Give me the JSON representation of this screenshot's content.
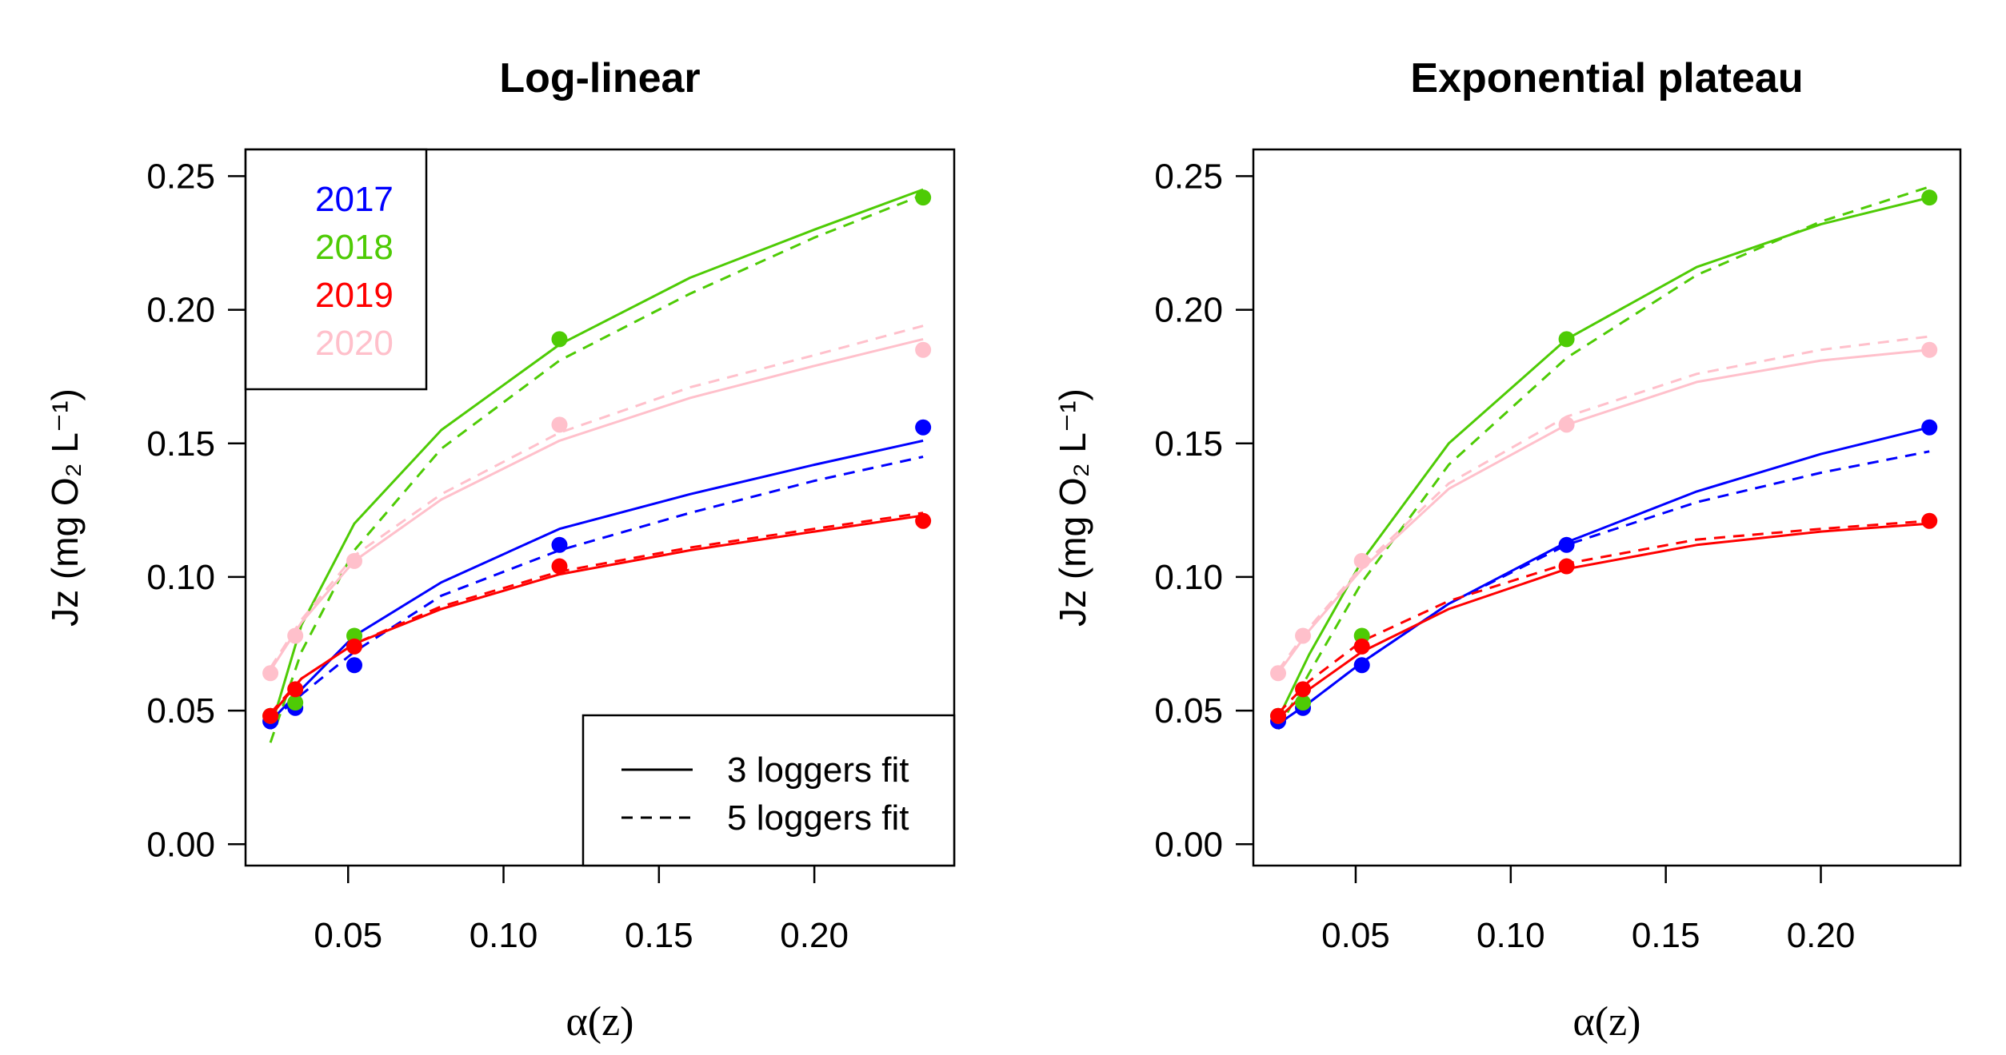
{
  "chart_data": [
    {
      "type": "line",
      "title": "Log-linear",
      "xlabel": "α(z)",
      "ylabel": "Jz (mg O₂ L⁻¹)",
      "xlim": [
        0.017,
        0.245
      ],
      "ylim": [
        -0.008,
        0.26
      ],
      "xticks": [
        "0.05",
        "0.10",
        "0.15",
        "0.20"
      ],
      "yticks": [
        "0.00",
        "0.05",
        "0.10",
        "0.15",
        "0.20",
        "0.25"
      ],
      "color_legend": {
        "placement": "top-left",
        "entries": [
          "2017",
          "2018",
          "2019",
          "2020"
        ]
      },
      "line_legend": {
        "placement": "bottom-right",
        "entries": [
          "3 loggers fit",
          "5 loggers fit"
        ]
      },
      "series": [
        {
          "name": "2017",
          "color": "#0000FF",
          "points": {
            "x": [
              0.025,
              0.033,
              0.052,
              0.118,
              0.235
            ],
            "y": [
              0.046,
              0.051,
              0.067,
              0.112,
              0.156
            ]
          },
          "fit_3": {
            "x": [
              0.025,
              0.035,
              0.052,
              0.08,
              0.118,
              0.16,
              0.2,
              0.235
            ],
            "y": [
              0.046,
              0.058,
              0.078,
              0.098,
              0.118,
              0.131,
              0.142,
              0.151
            ]
          },
          "fit_5": {
            "x": [
              0.025,
              0.035,
              0.052,
              0.08,
              0.118,
              0.16,
              0.2,
              0.235
            ],
            "y": [
              0.046,
              0.056,
              0.072,
              0.093,
              0.11,
              0.124,
              0.136,
              0.145
            ]
          }
        },
        {
          "name": "2018",
          "color": "#4ECB05",
          "points": {
            "x": [
              0.025,
              0.033,
              0.052,
              0.118,
              0.235
            ],
            "y": [
              0.048,
              0.053,
              0.078,
              0.189,
              0.242
            ]
          },
          "fit_3": {
            "x": [
              0.025,
              0.035,
              0.052,
              0.08,
              0.118,
              0.16,
              0.2,
              0.235
            ],
            "y": [
              0.043,
              0.082,
              0.12,
              0.155,
              0.187,
              0.212,
              0.23,
              0.245
            ]
          },
          "fit_5": {
            "x": [
              0.025,
              0.035,
              0.052,
              0.08,
              0.118,
              0.16,
              0.2,
              0.235
            ],
            "y": [
              0.038,
              0.072,
              0.11,
              0.148,
              0.181,
              0.206,
              0.227,
              0.243
            ]
          }
        },
        {
          "name": "2019",
          "color": "#FF0000",
          "points": {
            "x": [
              0.025,
              0.033,
              0.052,
              0.118,
              0.235
            ],
            "y": [
              0.048,
              0.058,
              0.074,
              0.104,
              0.121
            ]
          },
          "fit_3": {
            "x": [
              0.025,
              0.035,
              0.052,
              0.08,
              0.118,
              0.16,
              0.2,
              0.235
            ],
            "y": [
              0.048,
              0.062,
              0.075,
              0.088,
              0.101,
              0.11,
              0.117,
              0.123
            ]
          },
          "fit_5": {
            "x": [
              0.025,
              0.035,
              0.052,
              0.08,
              0.118,
              0.16,
              0.2,
              0.235
            ],
            "y": [
              0.049,
              0.062,
              0.075,
              0.089,
              0.102,
              0.111,
              0.118,
              0.124
            ]
          }
        },
        {
          "name": "2020",
          "color": "#FFC0CB",
          "points": {
            "x": [
              0.025,
              0.033,
              0.052,
              0.118,
              0.235
            ],
            "y": [
              0.064,
              0.078,
              0.106,
              0.157,
              0.185
            ]
          },
          "fit_3": {
            "x": [
              0.025,
              0.035,
              0.052,
              0.08,
              0.118,
              0.16,
              0.2,
              0.235
            ],
            "y": [
              0.065,
              0.083,
              0.106,
              0.129,
              0.151,
              0.167,
              0.179,
              0.189
            ]
          },
          "fit_5": {
            "x": [
              0.025,
              0.035,
              0.052,
              0.08,
              0.118,
              0.16,
              0.2,
              0.235
            ],
            "y": [
              0.066,
              0.084,
              0.108,
              0.131,
              0.154,
              0.171,
              0.183,
              0.194
            ]
          }
        }
      ]
    },
    {
      "type": "line",
      "title": "Exponential plateau",
      "xlabel": "α(z)",
      "ylabel": "Jz (mg O₂ L⁻¹)",
      "xlim": [
        0.017,
        0.245
      ],
      "ylim": [
        -0.008,
        0.26
      ],
      "xticks": [
        "0.05",
        "0.10",
        "0.15",
        "0.20"
      ],
      "yticks": [
        "0.00",
        "0.05",
        "0.10",
        "0.15",
        "0.20",
        "0.25"
      ],
      "series": [
        {
          "name": "2017",
          "color": "#0000FF",
          "points": {
            "x": [
              0.025,
              0.033,
              0.052,
              0.118,
              0.235
            ],
            "y": [
              0.046,
              0.051,
              0.067,
              0.112,
              0.156
            ]
          },
          "fit_3": {
            "x": [
              0.025,
              0.035,
              0.052,
              0.08,
              0.118,
              0.16,
              0.2,
              0.235
            ],
            "y": [
              0.045,
              0.053,
              0.068,
              0.09,
              0.113,
              0.132,
              0.146,
              0.156
            ]
          },
          "fit_5": {
            "x": [
              0.025,
              0.035,
              0.052,
              0.08,
              0.118,
              0.16,
              0.2,
              0.235
            ],
            "y": [
              0.045,
              0.053,
              0.068,
              0.09,
              0.112,
              0.128,
              0.139,
              0.147
            ]
          }
        },
        {
          "name": "2018",
          "color": "#4ECB05",
          "points": {
            "x": [
              0.025,
              0.033,
              0.052,
              0.118,
              0.235
            ],
            "y": [
              0.048,
              0.053,
              0.078,
              0.189,
              0.242
            ]
          },
          "fit_3": {
            "x": [
              0.025,
              0.035,
              0.052,
              0.08,
              0.118,
              0.16,
              0.2,
              0.235
            ],
            "y": [
              0.047,
              0.071,
              0.106,
              0.15,
              0.189,
              0.216,
              0.232,
              0.242
            ]
          },
          "fit_5": {
            "x": [
              0.025,
              0.035,
              0.052,
              0.08,
              0.118,
              0.16,
              0.2,
              0.235
            ],
            "y": [
              0.043,
              0.064,
              0.098,
              0.142,
              0.182,
              0.213,
              0.233,
              0.246
            ]
          }
        },
        {
          "name": "2019",
          "color": "#FF0000",
          "points": {
            "x": [
              0.025,
              0.033,
              0.052,
              0.118,
              0.235
            ],
            "y": [
              0.048,
              0.058,
              0.074,
              0.104,
              0.121
            ]
          },
          "fit_3": {
            "x": [
              0.025,
              0.035,
              0.052,
              0.08,
              0.118,
              0.16,
              0.2,
              0.235
            ],
            "y": [
              0.047,
              0.058,
              0.072,
              0.088,
              0.103,
              0.112,
              0.117,
              0.12
            ]
          },
          "fit_5": {
            "x": [
              0.025,
              0.035,
              0.052,
              0.08,
              0.118,
              0.16,
              0.2,
              0.235
            ],
            "y": [
              0.049,
              0.061,
              0.076,
              0.091,
              0.105,
              0.114,
              0.118,
              0.121
            ]
          }
        },
        {
          "name": "2020",
          "color": "#FFC0CB",
          "points": {
            "x": [
              0.025,
              0.033,
              0.052,
              0.118,
              0.235
            ],
            "y": [
              0.064,
              0.078,
              0.106,
              0.157,
              0.185
            ]
          },
          "fit_3": {
            "x": [
              0.025,
              0.035,
              0.052,
              0.08,
              0.118,
              0.16,
              0.2,
              0.235
            ],
            "y": [
              0.064,
              0.08,
              0.103,
              0.133,
              0.157,
              0.173,
              0.181,
              0.185
            ]
          },
          "fit_5": {
            "x": [
              0.025,
              0.035,
              0.052,
              0.08,
              0.118,
              0.16,
              0.2,
              0.235
            ],
            "y": [
              0.065,
              0.081,
              0.104,
              0.135,
              0.16,
              0.176,
              0.185,
              0.19
            ]
          }
        }
      ]
    }
  ]
}
